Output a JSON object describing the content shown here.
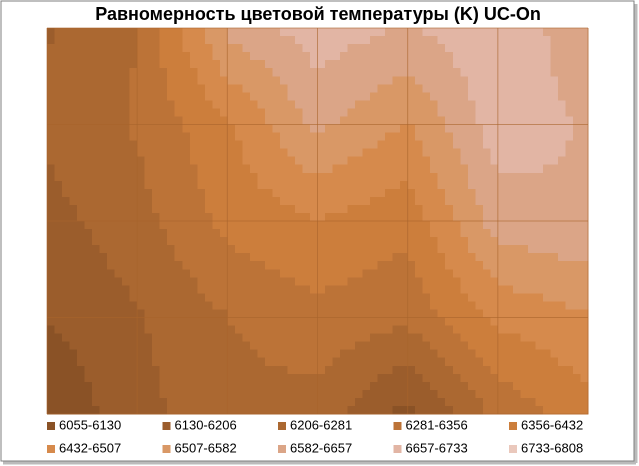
{
  "chart_data": {
    "type": "contour",
    "title": "Равномерность цветовой температуры (K) UC-On",
    "levels": [
      6055,
      6130,
      6206,
      6281,
      6356,
      6432,
      6507,
      6582,
      6657,
      6733,
      6808
    ],
    "series": [
      {
        "name": "6055-6130",
        "color": "#8a5226"
      },
      {
        "name": "6130-6206",
        "color": "#9b5d2c"
      },
      {
        "name": "6206-6281",
        "color": "#ab6831"
      },
      {
        "name": "6281-6356",
        "color": "#bc7337"
      },
      {
        "name": "6356-6432",
        "color": "#cc7e3c"
      },
      {
        "name": "6432-6507",
        "color": "#d68a4c"
      },
      {
        "name": "6507-6582",
        "color": "#d99866"
      },
      {
        "name": "6582-6657",
        "color": "#dba587"
      },
      {
        "name": "6657-6733",
        "color": "#e2b5a4"
      },
      {
        "name": "6733-6808",
        "color": "#eac8bc"
      }
    ],
    "z": [
      [
        6200,
        6280,
        6600,
        6700,
        6650,
        6720,
        6600
      ],
      [
        6220,
        6290,
        6420,
        6600,
        6500,
        6700,
        6650
      ],
      [
        6180,
        6250,
        6380,
        6430,
        6380,
        6620,
        6650
      ],
      [
        6130,
        6200,
        6280,
        6330,
        6300,
        6450,
        6500
      ],
      [
        6060,
        6180,
        6260,
        6250,
        6100,
        6300,
        6400
      ]
    ]
  }
}
